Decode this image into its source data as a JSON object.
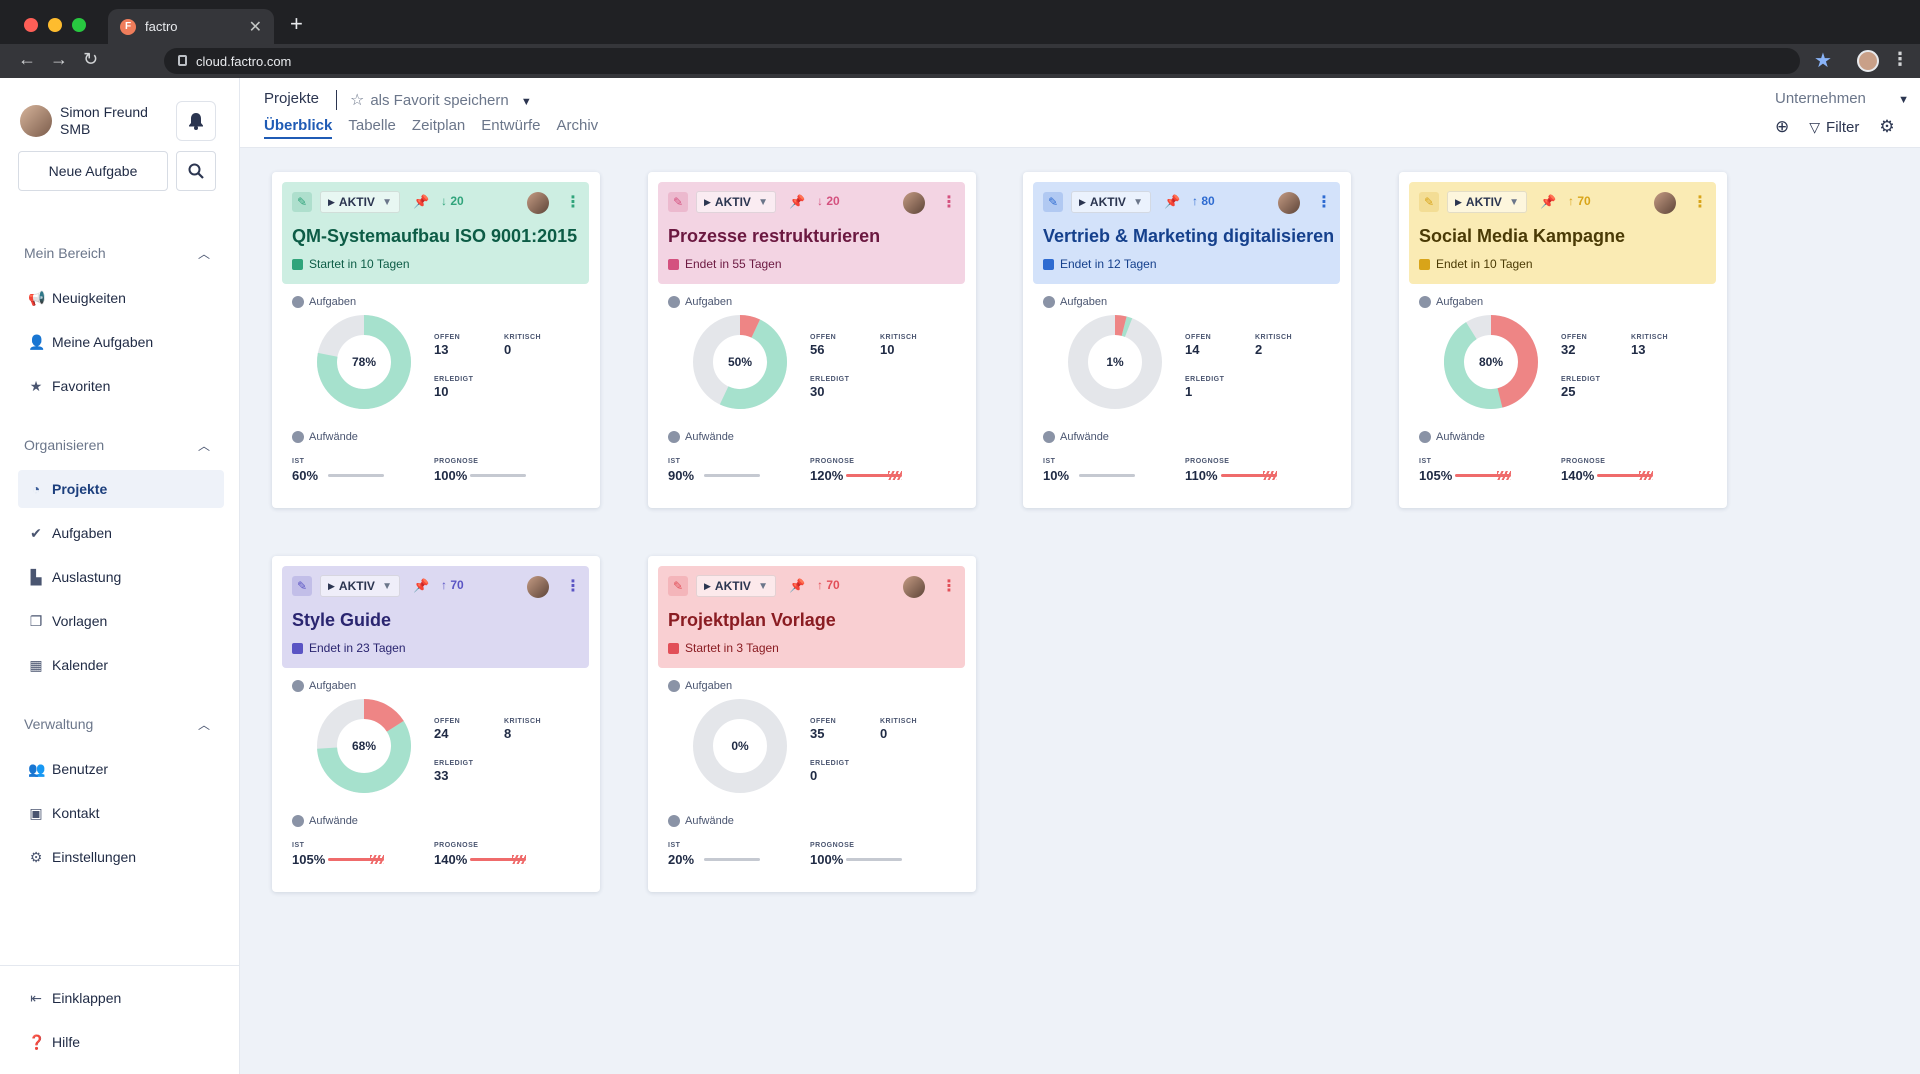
{
  "browser": {
    "tab_title": "factro",
    "tab_favicon": "F",
    "url": "cloud.factro.com"
  },
  "sidebar": {
    "user_name": "Simon Freund",
    "user_org": "SMB",
    "new_task": "Neue Aufgabe",
    "sections": [
      {
        "title": "Mein Bereich",
        "items": [
          {
            "label": "Neuigkeiten",
            "icon": "megaphone-icon"
          },
          {
            "label": "Meine Aufgaben",
            "icon": "user-check-icon"
          },
          {
            "label": "Favoriten",
            "icon": "star-icon"
          }
        ]
      },
      {
        "title": "Organisieren",
        "items": [
          {
            "label": "Projekte",
            "icon": "pie-icon",
            "active": true
          },
          {
            "label": "Aufgaben",
            "icon": "check-circle-icon"
          },
          {
            "label": "Auslastung",
            "icon": "chart-icon"
          },
          {
            "label": "Vorlagen",
            "icon": "copy-icon"
          },
          {
            "label": "Kalender",
            "icon": "calendar-icon"
          }
        ]
      },
      {
        "title": "Verwaltung",
        "items": [
          {
            "label": "Benutzer",
            "icon": "users-icon"
          },
          {
            "label": "Kontakt",
            "icon": "contact-icon"
          },
          {
            "label": "Einstellungen",
            "icon": "gear-icon"
          }
        ]
      }
    ],
    "bottom": [
      {
        "label": "Einklappen",
        "icon": "collapse-icon"
      },
      {
        "label": "Hilfe",
        "icon": "help-icon"
      }
    ]
  },
  "topbar": {
    "breadcrumb": "Projekte",
    "favorite": "als Favorit speichern",
    "tabs": [
      "Überblick",
      "Tabelle",
      "Zeitplan",
      "Entwürfe",
      "Archiv"
    ],
    "company": "Unternehmen",
    "filter": "Filter"
  },
  "labels": {
    "aufgaben": "Aufgaben",
    "aufwaende": "Aufwände",
    "offen": "OFFEN",
    "kritisch": "KRITISCH",
    "erledigt": "ERLEDIGT",
    "ist": "IST",
    "prognose": "PROGNOSE"
  },
  "projects": [
    {
      "title": "QM-Systemaufbau ISO 9001:2015",
      "status": "AKTIV",
      "priority": "20",
      "priority_dir": "down",
      "date": "Startet in 10 Tagen",
      "percent": "78%",
      "offen": "13",
      "kritisch": "0",
      "erledigt": "10",
      "ist": "60%",
      "prognose": "100%",
      "done_fraction": 0.78,
      "critical_fraction": 0,
      "ist_over": false,
      "prog_over": false,
      "colors": {
        "bg": "#cdeee2",
        "title": "#0d5c46",
        "accent": "#30a47b",
        "pin": "#30a47b"
      }
    },
    {
      "title": "Prozesse restrukturieren",
      "status": "AKTIV",
      "priority": "20",
      "priority_dir": "down",
      "date": "Endet in 55 Tagen",
      "percent": "50%",
      "offen": "56",
      "kritisch": "10",
      "erledigt": "30",
      "ist": "90%",
      "prognose": "120%",
      "done_fraction": 0.5,
      "critical_fraction": 0.07,
      "ist_over": false,
      "prog_over": true,
      "colors": {
        "bg": "#f3d4e3",
        "title": "#6b1840",
        "accent": "#d4517f",
        "pin": "#b3284f"
      }
    },
    {
      "title": "Vertrieb & Marketing digitalisieren",
      "status": "AKTIV",
      "priority": "80",
      "priority_dir": "up",
      "date": "Endet in 12 Tagen",
      "percent": "1%",
      "offen": "14",
      "kritisch": "2",
      "erledigt": "1",
      "ist": "10%",
      "prognose": "110%",
      "done_fraction": 0.02,
      "critical_fraction": 0.04,
      "ist_over": false,
      "prog_over": true,
      "colors": {
        "bg": "#d3e2fa",
        "title": "#15408c",
        "accent": "#2e6bd1",
        "pin": "#2e6bd1"
      }
    },
    {
      "title": "Social Media Kampagne",
      "status": "AKTIV",
      "priority": "70",
      "priority_dir": "up",
      "date": "Endet in 10 Tagen",
      "percent": "80%",
      "offen": "32",
      "kritisch": "13",
      "erledigt": "25",
      "ist": "105%",
      "prognose": "140%",
      "done_fraction": 0.45,
      "critical_fraction": 0.46,
      "ist_over": true,
      "prog_over": true,
      "colors": {
        "bg": "#faebb4",
        "title": "#4a3a05",
        "accent": "#d8a419",
        "pin": "#d8a419"
      }
    },
    {
      "title": "Style Guide",
      "status": "AKTIV",
      "priority": "70",
      "priority_dir": "up",
      "date": "Endet in 23 Tagen",
      "percent": "68%",
      "offen": "24",
      "kritisch": "8",
      "erledigt": "33",
      "ist": "105%",
      "prognose": "140%",
      "done_fraction": 0.58,
      "critical_fraction": 0.16,
      "ist_over": true,
      "prog_over": true,
      "colors": {
        "bg": "#dcd9f2",
        "title": "#2a2570",
        "accent": "#5a54c4",
        "pin": "#5a54c4"
      }
    },
    {
      "title": "Projektplan Vorlage",
      "status": "AKTIV",
      "priority": "70",
      "priority_dir": "up",
      "date": "Startet in 3 Tagen",
      "percent": "0%",
      "offen": "35",
      "kritisch": "0",
      "erledigt": "0",
      "ist": "20%",
      "prognose": "100%",
      "done_fraction": 0,
      "critical_fraction": 0,
      "ist_over": false,
      "prog_over": false,
      "colors": {
        "bg": "#f9cfd2",
        "title": "#8a1c22",
        "accent": "#e24f58",
        "pin": "#e24f58"
      }
    }
  ]
}
